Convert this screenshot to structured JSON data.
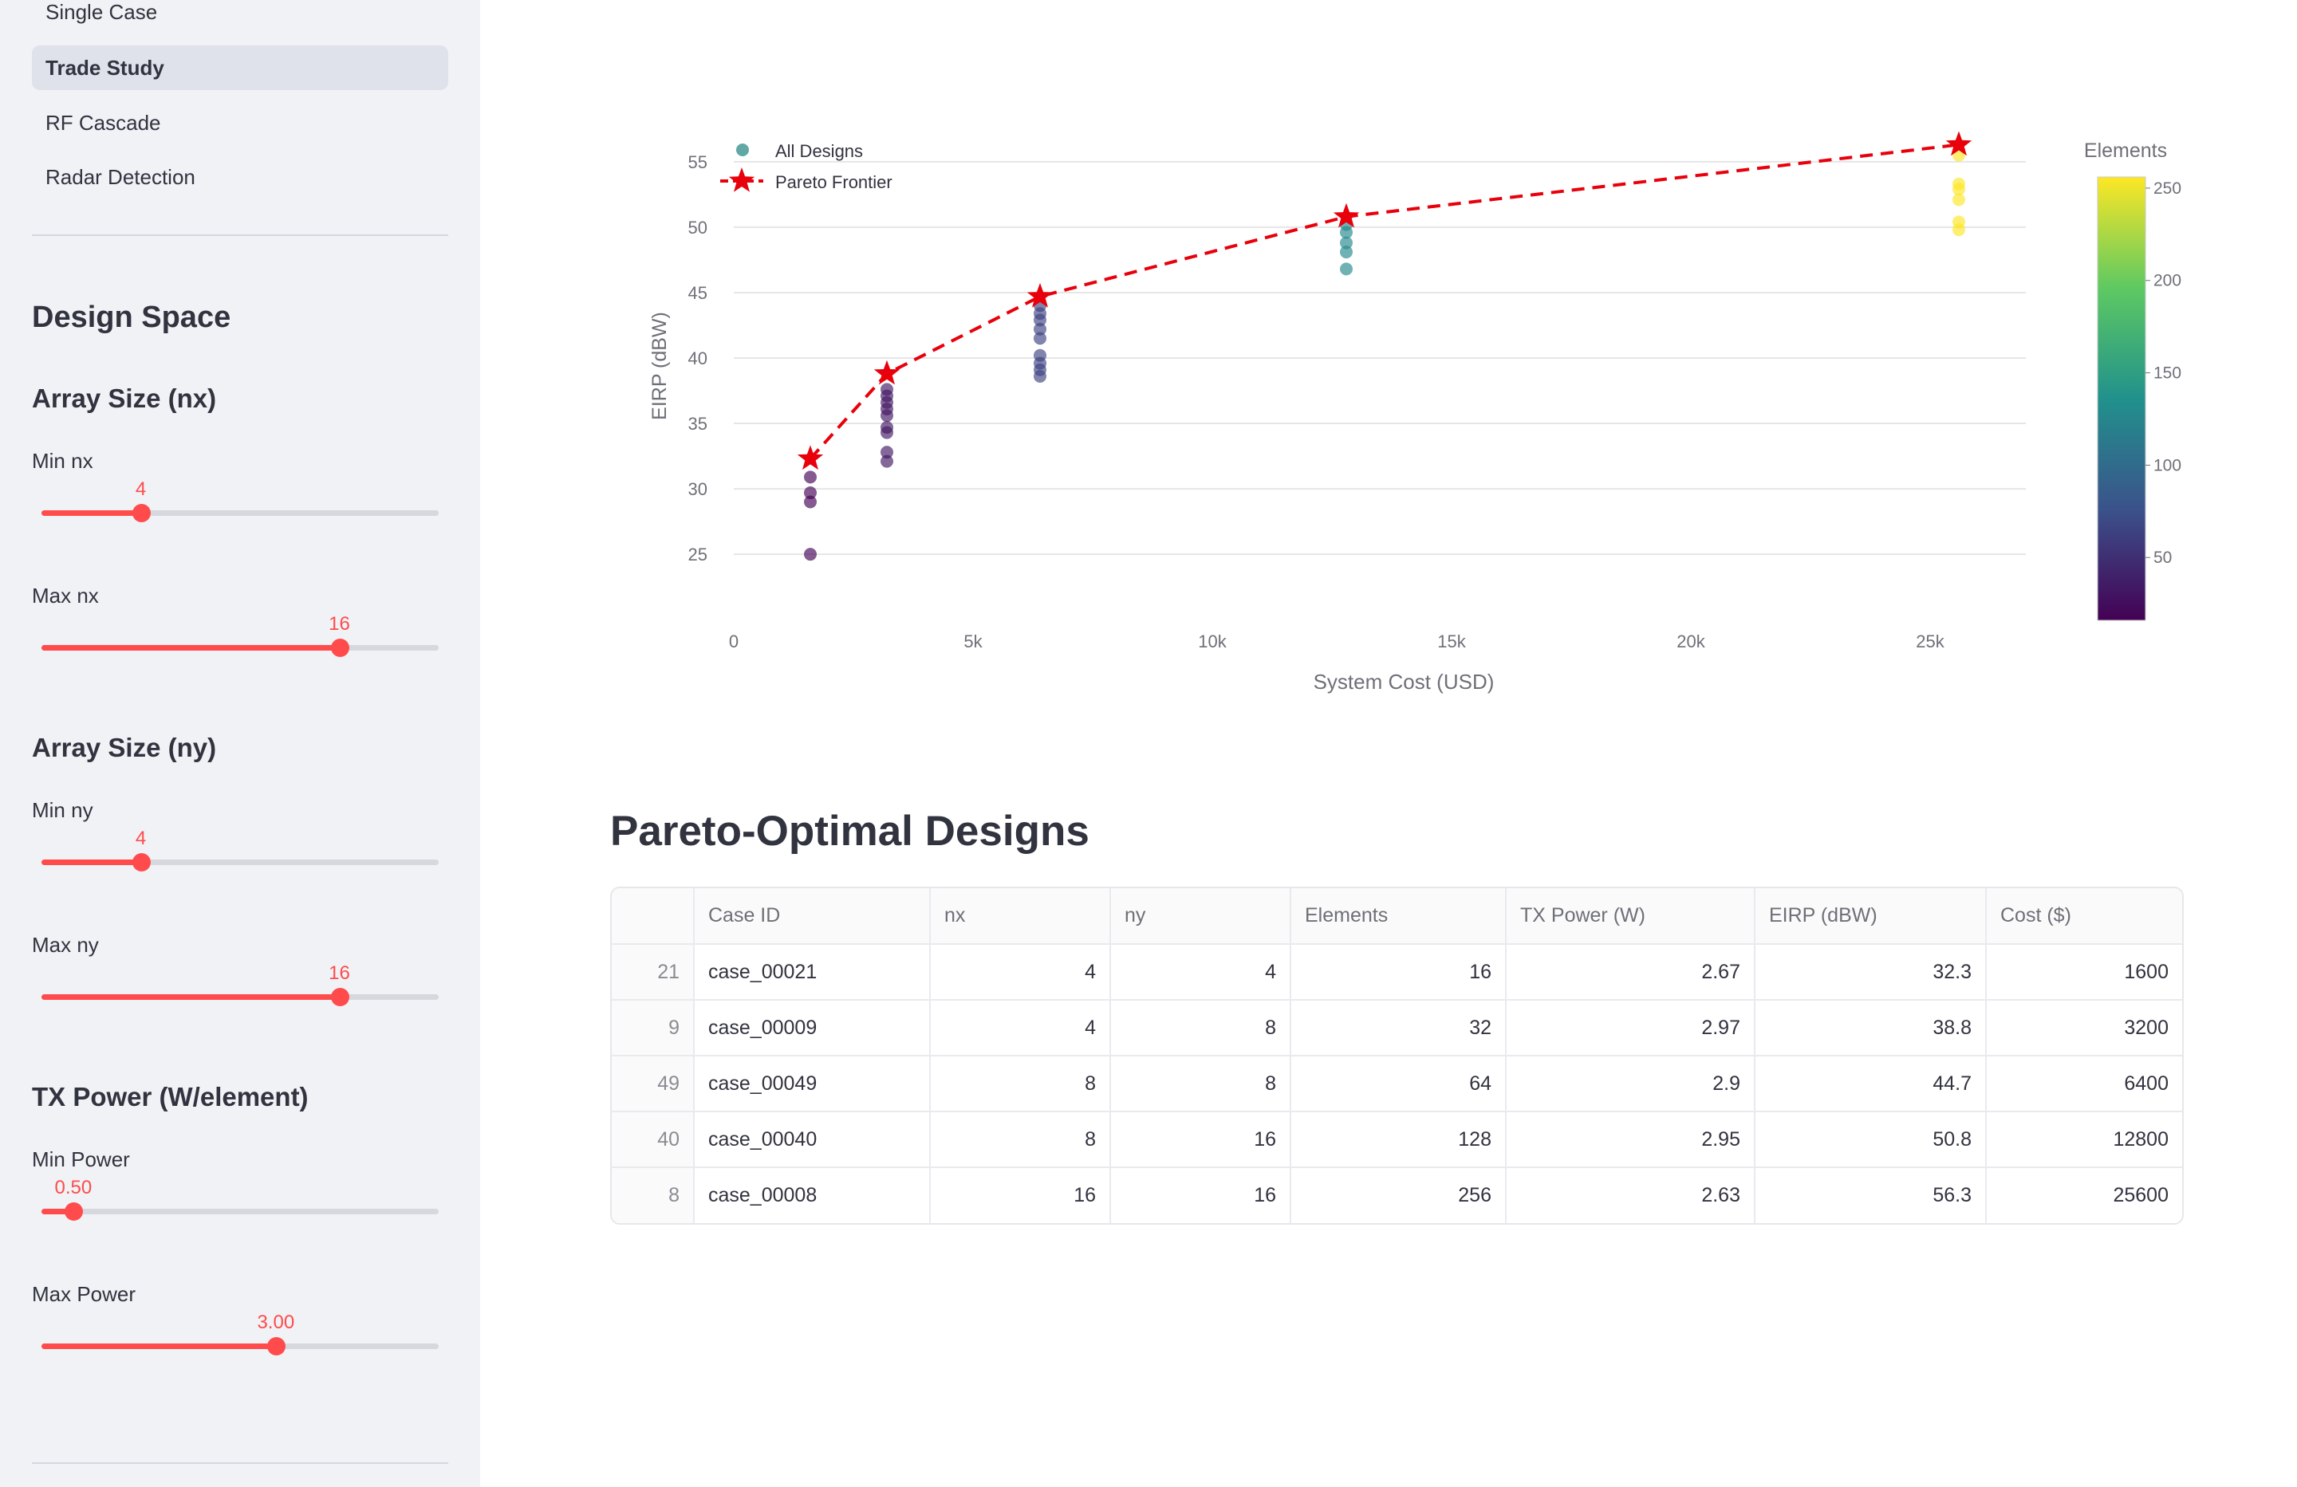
{
  "sidebar": {
    "nav": [
      "Single Case",
      "Trade Study",
      "RF Cascade",
      "Radar Detection"
    ],
    "active_nav": "Trade Study",
    "design_space_title": "Design Space",
    "nx": {
      "title": "Array Size (nx)",
      "min_label": "Min nx",
      "min_value": "4",
      "min_fraction": 0.25,
      "max_label": "Max nx",
      "max_value": "16",
      "max_fraction": 0.75
    },
    "ny": {
      "title": "Array Size (ny)",
      "min_label": "Min ny",
      "min_value": "4",
      "min_fraction": 0.25,
      "max_label": "Max ny",
      "max_value": "16",
      "max_fraction": 0.75
    },
    "power": {
      "title": "TX Power (W/element)",
      "min_label": "Min Power",
      "min_value": "0.50",
      "min_fraction": 0.08,
      "max_label": "Max Power",
      "max_value": "3.00",
      "max_fraction": 0.59
    }
  },
  "chart_data": {
    "type": "scatter",
    "xlabel": "System Cost (USD)",
    "ylabel": "EIRP (dBW)",
    "xlim": [
      0,
      27000
    ],
    "ylim": [
      23,
      57
    ],
    "x_ticks": [
      {
        "v": 0,
        "t": "0"
      },
      {
        "v": 5000,
        "t": "5k"
      },
      {
        "v": 10000,
        "t": "10k"
      },
      {
        "v": 15000,
        "t": "15k"
      },
      {
        "v": 20000,
        "t": "20k"
      },
      {
        "v": 25000,
        "t": "25k"
      }
    ],
    "y_ticks": [
      25,
      30,
      35,
      40,
      45,
      50,
      55
    ],
    "grid": true,
    "legend": {
      "position": "top-left",
      "entries": [
        "All Designs",
        "Pareto Frontier"
      ]
    },
    "colorbar": {
      "title": "Elements",
      "min": 16,
      "max": 256,
      "ticks": [
        50,
        100,
        150,
        200,
        250
      ],
      "colormap": [
        "#440154",
        "#3b528b",
        "#21918c",
        "#5ec962",
        "#fde725"
      ]
    },
    "series": [
      {
        "name": "All Designs",
        "points": [
          {
            "x": 1600,
            "y": 30.9,
            "e": 16
          },
          {
            "x": 1600,
            "y": 29.7,
            "e": 16
          },
          {
            "x": 1600,
            "y": 29.0,
            "e": 16
          },
          {
            "x": 1600,
            "y": 25.0,
            "e": 16
          },
          {
            "x": 3200,
            "y": 37.6,
            "e": 32
          },
          {
            "x": 3200,
            "y": 37.1,
            "e": 32
          },
          {
            "x": 3200,
            "y": 36.6,
            "e": 32
          },
          {
            "x": 3200,
            "y": 36.1,
            "e": 32
          },
          {
            "x": 3200,
            "y": 35.6,
            "e": 32
          },
          {
            "x": 3200,
            "y": 34.7,
            "e": 32
          },
          {
            "x": 3200,
            "y": 34.3,
            "e": 32
          },
          {
            "x": 3200,
            "y": 32.8,
            "e": 32
          },
          {
            "x": 3200,
            "y": 32.1,
            "e": 32
          },
          {
            "x": 6400,
            "y": 44.0,
            "e": 64
          },
          {
            "x": 6400,
            "y": 43.4,
            "e": 64
          },
          {
            "x": 6400,
            "y": 42.9,
            "e": 64
          },
          {
            "x": 6400,
            "y": 42.2,
            "e": 64
          },
          {
            "x": 6400,
            "y": 41.5,
            "e": 64
          },
          {
            "x": 6400,
            "y": 40.2,
            "e": 64
          },
          {
            "x": 6400,
            "y": 39.6,
            "e": 64
          },
          {
            "x": 6400,
            "y": 39.1,
            "e": 64
          },
          {
            "x": 6400,
            "y": 38.6,
            "e": 64
          },
          {
            "x": 12800,
            "y": 50.2,
            "e": 128
          },
          {
            "x": 12800,
            "y": 49.6,
            "e": 128
          },
          {
            "x": 12800,
            "y": 48.8,
            "e": 128
          },
          {
            "x": 12800,
            "y": 48.1,
            "e": 128
          },
          {
            "x": 12800,
            "y": 46.8,
            "e": 128
          },
          {
            "x": 25600,
            "y": 55.5,
            "e": 256
          },
          {
            "x": 25600,
            "y": 53.3,
            "e": 256
          },
          {
            "x": 25600,
            "y": 52.9,
            "e": 256
          },
          {
            "x": 25600,
            "y": 52.1,
            "e": 256
          },
          {
            "x": 25600,
            "y": 50.4,
            "e": 256
          },
          {
            "x": 25600,
            "y": 49.8,
            "e": 256
          }
        ]
      },
      {
        "name": "Pareto Frontier",
        "points": [
          {
            "x": 1600,
            "y": 32.3
          },
          {
            "x": 3200,
            "y": 38.8
          },
          {
            "x": 6400,
            "y": 44.7
          },
          {
            "x": 12800,
            "y": 50.8
          },
          {
            "x": 25600,
            "y": 56.3
          }
        ]
      }
    ]
  },
  "table": {
    "title": "Pareto-Optimal Designs",
    "columns": [
      "",
      "Case ID",
      "nx",
      "ny",
      "Elements",
      "TX Power (W)",
      "EIRP (dBW)",
      "Cost ($)"
    ],
    "rows": [
      [
        "21",
        "case_00021",
        "4",
        "4",
        "16",
        "2.67",
        "32.3",
        "1600"
      ],
      [
        "9",
        "case_00009",
        "4",
        "8",
        "32",
        "2.97",
        "38.8",
        "3200"
      ],
      [
        "49",
        "case_00049",
        "8",
        "8",
        "64",
        "2.9",
        "44.7",
        "6400"
      ],
      [
        "40",
        "case_00040",
        "8",
        "16",
        "128",
        "2.95",
        "50.8",
        "12800"
      ],
      [
        "8",
        "case_00008",
        "16",
        "16",
        "256",
        "2.63",
        "56.3",
        "25600"
      ]
    ]
  },
  "colors": {
    "accent": "#ff4b4b",
    "pareto": "#e8000b",
    "sidebar_bg": "#f0f2f6"
  }
}
